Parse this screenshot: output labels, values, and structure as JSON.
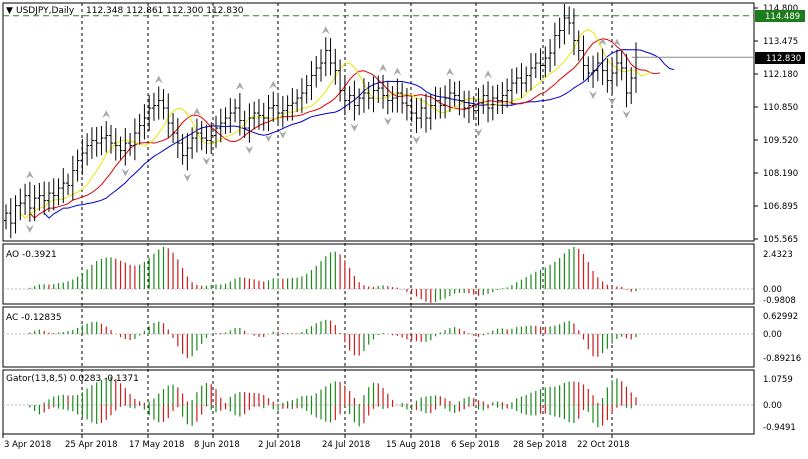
{
  "header": {
    "symbol": "USDJPY,Daily",
    "ohlc": "112.348 112.861 112.300 112.830"
  },
  "colors": {
    "background": "#ffffff",
    "grid": "#000000",
    "candle": "#000000",
    "green": "#1a8a1a",
    "red": "#cc1c1c",
    "lips": "#e8e800",
    "teeth": "#dd0000",
    "jaw": "#0000cc",
    "price_level_dashed": "#2e7d32",
    "fractal": "#a8a8a8",
    "current_price_box": "#000000",
    "level_box": "#1e7a1e"
  },
  "price_axis": {
    "labels": [
      "114.800",
      "113.475",
      "112.180",
      "110.850",
      "109.520",
      "108.190",
      "106.895",
      "105.565"
    ],
    "level_tag": "114.489",
    "current_tag": "112.830"
  },
  "ao": {
    "label": "AO -0.3921",
    "axis": [
      "2.4323",
      "0.00",
      "-0.9808"
    ]
  },
  "ac": {
    "label": "AC -0.12835",
    "axis": [
      "0.62992",
      "0.00",
      "-0.89216"
    ]
  },
  "gator": {
    "label": "Gator(13,8,5) 0.0283 -0.1371",
    "axis": [
      "1.0759",
      "0.00",
      "-0.9491"
    ]
  },
  "time_axis": {
    "labels": [
      "3 Apr 2018",
      "25 Apr 2018",
      "17 May 2018",
      "8 Jun 2018",
      "2 Jul 2018",
      "24 Jul 2018",
      "15 Aug 2018",
      "6 Sep 2018",
      "28 Sep 2018",
      "22 Oct 2018"
    ]
  },
  "chart_data": {
    "type": "candlestick",
    "symbol": "USDJPY",
    "timeframe": "Daily",
    "ylim": [
      105.565,
      114.8
    ],
    "current_price": 112.83,
    "level_line": 114.489,
    "closes": [
      106.6,
      106.2,
      106.9,
      107.0,
      107.3,
      106.8,
      107.2,
      107.3,
      107.1,
      107.4,
      107.3,
      107.6,
      107.8,
      107.7,
      108.3,
      108.7,
      109.0,
      109.3,
      109.5,
      109.4,
      109.6,
      109.7,
      109.4,
      109.3,
      109.1,
      109.4,
      109.3,
      109.8,
      110.1,
      110.4,
      110.8,
      110.9,
      111.1,
      110.8,
      110.2,
      109.8,
      109.4,
      108.9,
      109.2,
      109.6,
      109.8,
      109.6,
      109.5,
      109.7,
      110.0,
      110.2,
      110.4,
      110.6,
      110.8,
      110.3,
      110.0,
      110.4,
      110.6,
      110.5,
      110.4,
      110.8,
      110.9,
      110.6,
      110.7,
      110.9,
      111.0,
      111.2,
      111.4,
      111.7,
      112.1,
      112.4,
      112.6,
      113.1,
      112.6,
      112.3,
      111.5,
      111.1,
      111.3,
      110.9,
      111.2,
      111.4,
      111.2,
      111.5,
      111.6,
      111.3,
      111.1,
      111.2,
      111.4,
      111.0,
      110.9,
      110.6,
      110.4,
      110.8,
      110.4,
      110.9,
      111.1,
      110.9,
      111.2,
      111.4,
      111.3,
      111.1,
      110.8,
      110.9,
      110.7,
      111.0,
      111.3,
      110.8,
      111.2,
      111.1,
      111.3,
      111.5,
      111.8,
      112.0,
      111.8,
      112.1,
      112.4,
      112.6,
      112.5,
      112.8,
      113.0,
      113.7,
      113.9,
      114.4,
      114.2,
      113.5,
      113.1,
      112.5,
      112.2,
      112.3,
      112.6,
      112.3,
      111.9,
      112.2,
      112.6,
      112.4,
      111.4,
      112.0,
      112.83
    ]
  }
}
